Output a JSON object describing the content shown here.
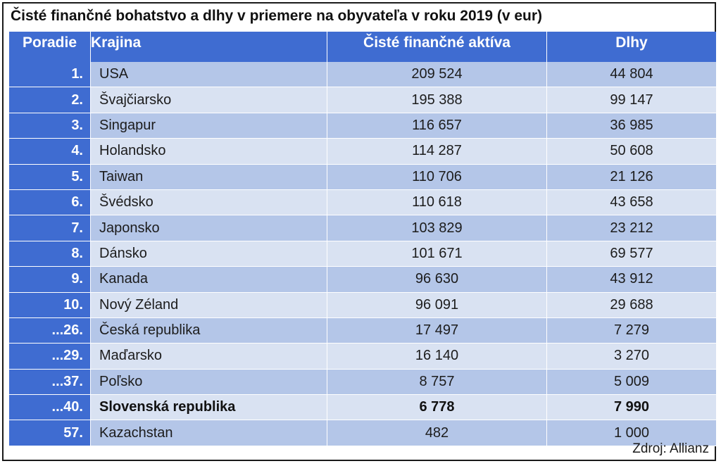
{
  "chart_data": {
    "type": "table",
    "title": "Čisté finančné bohatstvo a dlhy v priemere na obyvateľa v roku 2019 (v eur)",
    "columns": [
      "Poradie",
      "Krajina",
      "Čisté finančné aktíva",
      "Dlhy"
    ],
    "rows": [
      {
        "rank": "1.",
        "country": "USA",
        "assets": "209 524",
        "debts": "44 804"
      },
      {
        "rank": "2.",
        "country": "Švajčiarsko",
        "assets": "195 388",
        "debts": "99 147"
      },
      {
        "rank": "3.",
        "country": "Singapur",
        "assets": "116 657",
        "debts": "36 985"
      },
      {
        "rank": "4.",
        "country": "Holandsko",
        "assets": "114 287",
        "debts": "50 608"
      },
      {
        "rank": "5.",
        "country": "Taiwan",
        "assets": "110 706",
        "debts": "21 126"
      },
      {
        "rank": "6.",
        "country": "Švédsko",
        "assets": "110 618",
        "debts": "43 658"
      },
      {
        "rank": "7.",
        "country": "Japonsko",
        "assets": "103 829",
        "debts": "23 212"
      },
      {
        "rank": "8.",
        "country": "Dánsko",
        "assets": "101 671",
        "debts": "69 577"
      },
      {
        "rank": "9.",
        "country": "Kanada",
        "assets": "96 630",
        "debts": "43 912"
      },
      {
        "rank": "10.",
        "country": "Nový Zéland",
        "assets": "96 091",
        "debts": "29 688"
      },
      {
        "rank": "...26.",
        "country": "Česká republika",
        "assets": "17 497",
        "debts": "7 279"
      },
      {
        "rank": "...29.",
        "country": "Maďarsko",
        "assets": "16 140",
        "debts": "3 270"
      },
      {
        "rank": "...37.",
        "country": "Poľsko",
        "assets": "8 757",
        "debts": "5 009"
      },
      {
        "rank": "...40.",
        "country": "Slovenská republika",
        "assets": "6 778",
        "debts": "7 990",
        "highlight": true
      },
      {
        "rank": "57.",
        "country": "Kazachstan",
        "assets": "482",
        "debts": "1 000"
      }
    ],
    "source": "Zdroj: Allianz"
  },
  "colors": {
    "header_bg": "#3f6cd1",
    "row_dark": "#b4c6e8",
    "row_light": "#d9e2f2",
    "header_text": "#ffffff"
  }
}
